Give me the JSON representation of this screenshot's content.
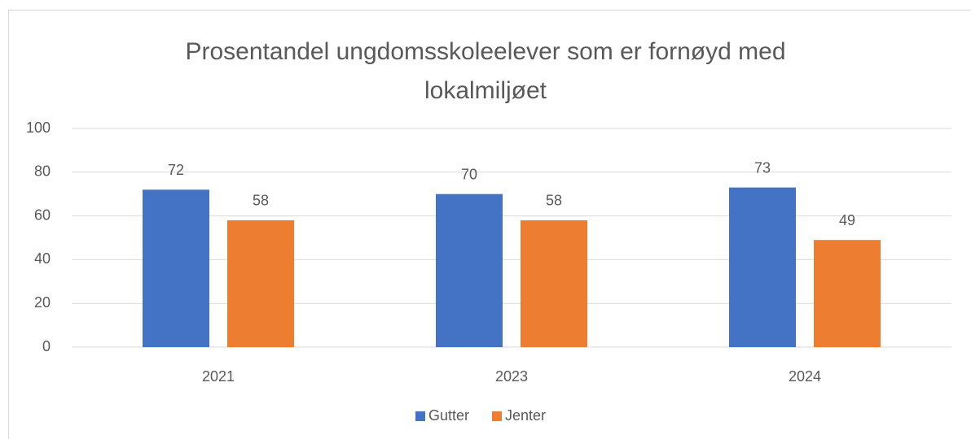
{
  "chart_data": {
    "type": "bar",
    "title": "Prosentandel ungdomsskoleelever som er fornøyd med lokalmiljøet",
    "categories": [
      "2021",
      "2023",
      "2024"
    ],
    "series": [
      {
        "name": "Gutter",
        "color": "#4472c4",
        "values": [
          72,
          70,
          73
        ]
      },
      {
        "name": "Jenter",
        "color": "#ed7d31",
        "values": [
          58,
          58,
          49
        ]
      }
    ],
    "ylim": [
      0,
      100
    ],
    "yticks": [
      0,
      20,
      40,
      60,
      80,
      100
    ],
    "grid": true,
    "legend": "bottom"
  }
}
